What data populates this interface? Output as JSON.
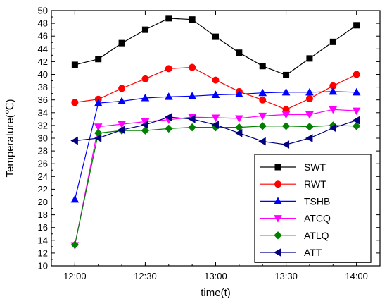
{
  "chart_data": {
    "type": "line",
    "xlabel": "time(t)",
    "ylabel": "Temperature(℃)",
    "xlim": [
      "11:50",
      "14:10"
    ],
    "ylim": [
      10,
      50
    ],
    "x_tick_labels": [
      "12:00",
      "12:30",
      "13:00",
      "13:30",
      "14:00"
    ],
    "y_tick_labels": [
      "10",
      "12",
      "14",
      "16",
      "18",
      "20",
      "22",
      "24",
      "26",
      "28",
      "30",
      "32",
      "34",
      "36",
      "38",
      "40",
      "42",
      "44",
      "46",
      "48",
      "50"
    ],
    "x": [
      "12:00",
      "12:10",
      "12:20",
      "12:30",
      "12:40",
      "12:50",
      "13:00",
      "13:10",
      "13:20",
      "13:30",
      "13:40",
      "13:50",
      "14:00"
    ],
    "legend_position": "center-right",
    "grid": false,
    "series": [
      {
        "name": "SWT",
        "color": "#000000",
        "marker": "square",
        "values": [
          41.5,
          42.4,
          44.9,
          47.0,
          48.8,
          48.6,
          45.9,
          43.4,
          41.3,
          39.9,
          42.5,
          45.1,
          47.7
        ]
      },
      {
        "name": "RWT",
        "color": "#ff0000",
        "marker": "circle",
        "values": [
          35.6,
          36.1,
          37.8,
          39.3,
          40.9,
          41.1,
          39.1,
          37.3,
          36.0,
          34.5,
          36.2,
          38.2,
          40.0
        ]
      },
      {
        "name": "TSHB",
        "color": "#0000ff",
        "marker": "triangle-up",
        "values": [
          20.4,
          35.5,
          35.8,
          36.3,
          36.5,
          36.6,
          36.8,
          36.9,
          37.1,
          37.2,
          37.2,
          37.3,
          37.2
        ]
      },
      {
        "name": "ATCQ",
        "color": "#ff00ff",
        "marker": "triangle-down",
        "values": [
          13.2,
          31.8,
          32.2,
          32.6,
          32.9,
          33.3,
          33.2,
          33.1,
          33.5,
          33.7,
          33.7,
          34.5,
          34.3
        ]
      },
      {
        "name": "ATLQ",
        "color": "#008000",
        "marker": "diamond",
        "values": [
          13.3,
          30.8,
          31.2,
          31.2,
          31.5,
          31.7,
          31.7,
          31.7,
          31.9,
          31.9,
          31.8,
          32.0,
          31.9
        ]
      },
      {
        "name": "ATT",
        "color": "#000080",
        "marker": "triangle-left",
        "values": [
          29.6,
          30.0,
          31.3,
          32.1,
          33.3,
          33.0,
          32.1,
          30.8,
          29.5,
          29.0,
          30.0,
          31.6,
          32.8
        ]
      }
    ]
  }
}
